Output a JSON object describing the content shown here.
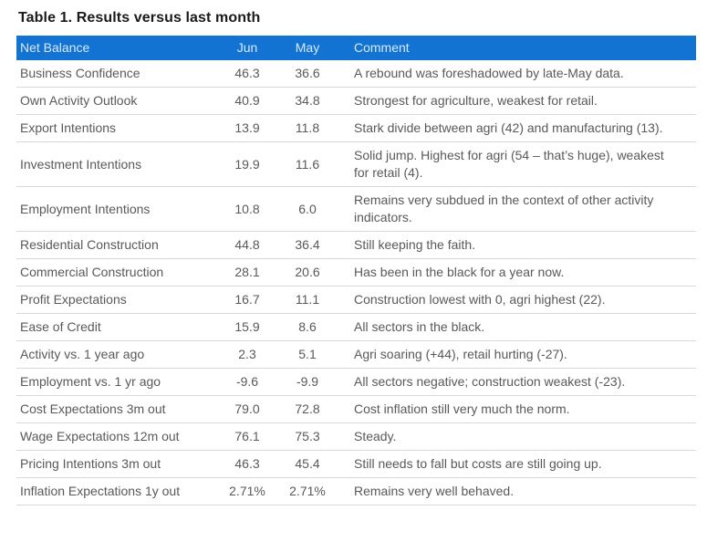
{
  "title": "Table 1. Results versus last month",
  "table": {
    "columns": [
      "Net Balance",
      "Jun",
      "May",
      "Comment"
    ],
    "rows": [
      {
        "label": "Business Confidence",
        "jun": "46.3",
        "may": "36.6",
        "comment": "A rebound was foreshadowed by late-May data."
      },
      {
        "label": "Own Activity Outlook",
        "jun": "40.9",
        "may": "34.8",
        "comment": "Strongest for agriculture, weakest for retail."
      },
      {
        "label": "Export Intentions",
        "jun": "13.9",
        "may": "11.8",
        "comment": "Stark divide between agri (42) and manufacturing (13)."
      },
      {
        "label": "Investment Intentions",
        "jun": "19.9",
        "may": "11.6",
        "comment": "Solid jump. Highest for agri (54 – that’s huge), weakest for retail (4)."
      },
      {
        "label": "Employment Intentions",
        "jun": "10.8",
        "may": "6.0",
        "comment": "Remains very subdued in the context of other activity indicators."
      },
      {
        "label": "Residential Construction",
        "jun": "44.8",
        "may": "36.4",
        "comment": "Still keeping the faith."
      },
      {
        "label": "Commercial Construction",
        "jun": "28.1",
        "may": "20.6",
        "comment": "Has been in the black for a year now."
      },
      {
        "label": "Profit Expectations",
        "jun": "16.7",
        "may": "11.1",
        "comment": "Construction lowest with 0, agri highest (22)."
      },
      {
        "label": "Ease of Credit",
        "jun": "15.9",
        "may": "8.6",
        "comment": "All sectors in the black."
      },
      {
        "label": "Activity vs. 1 year ago",
        "jun": "2.3",
        "may": "5.1",
        "comment": "Agri soaring (+44), retail hurting (-27)."
      },
      {
        "label": "Employment vs. 1 yr ago",
        "jun": "-9.6",
        "may": "-9.9",
        "comment": "All sectors negative; construction weakest (-23)."
      },
      {
        "label": "Cost Expectations 3m out",
        "jun": "79.0",
        "may": "72.8",
        "comment": "Cost inflation still very much the norm."
      },
      {
        "label": "Wage Expectations 12m out",
        "jun": "76.1",
        "may": "75.3",
        "comment": "Steady."
      },
      {
        "label": "Pricing Intentions 3m out",
        "jun": "46.3",
        "may": "45.4",
        "comment": "Still needs to fall but costs are still going up."
      },
      {
        "label": "Inflation Expectations 1y out",
        "jun": "2.71%",
        "may": "2.71%",
        "comment": "Remains very well behaved."
      }
    ]
  },
  "colors": {
    "header_bg": "#1273d2",
    "header_text": "#d9e9fb",
    "body_text": "#595959",
    "border_color": "#d8d8d8",
    "title_text": "#1a1a1a",
    "page_bg": "#ffffff"
  }
}
